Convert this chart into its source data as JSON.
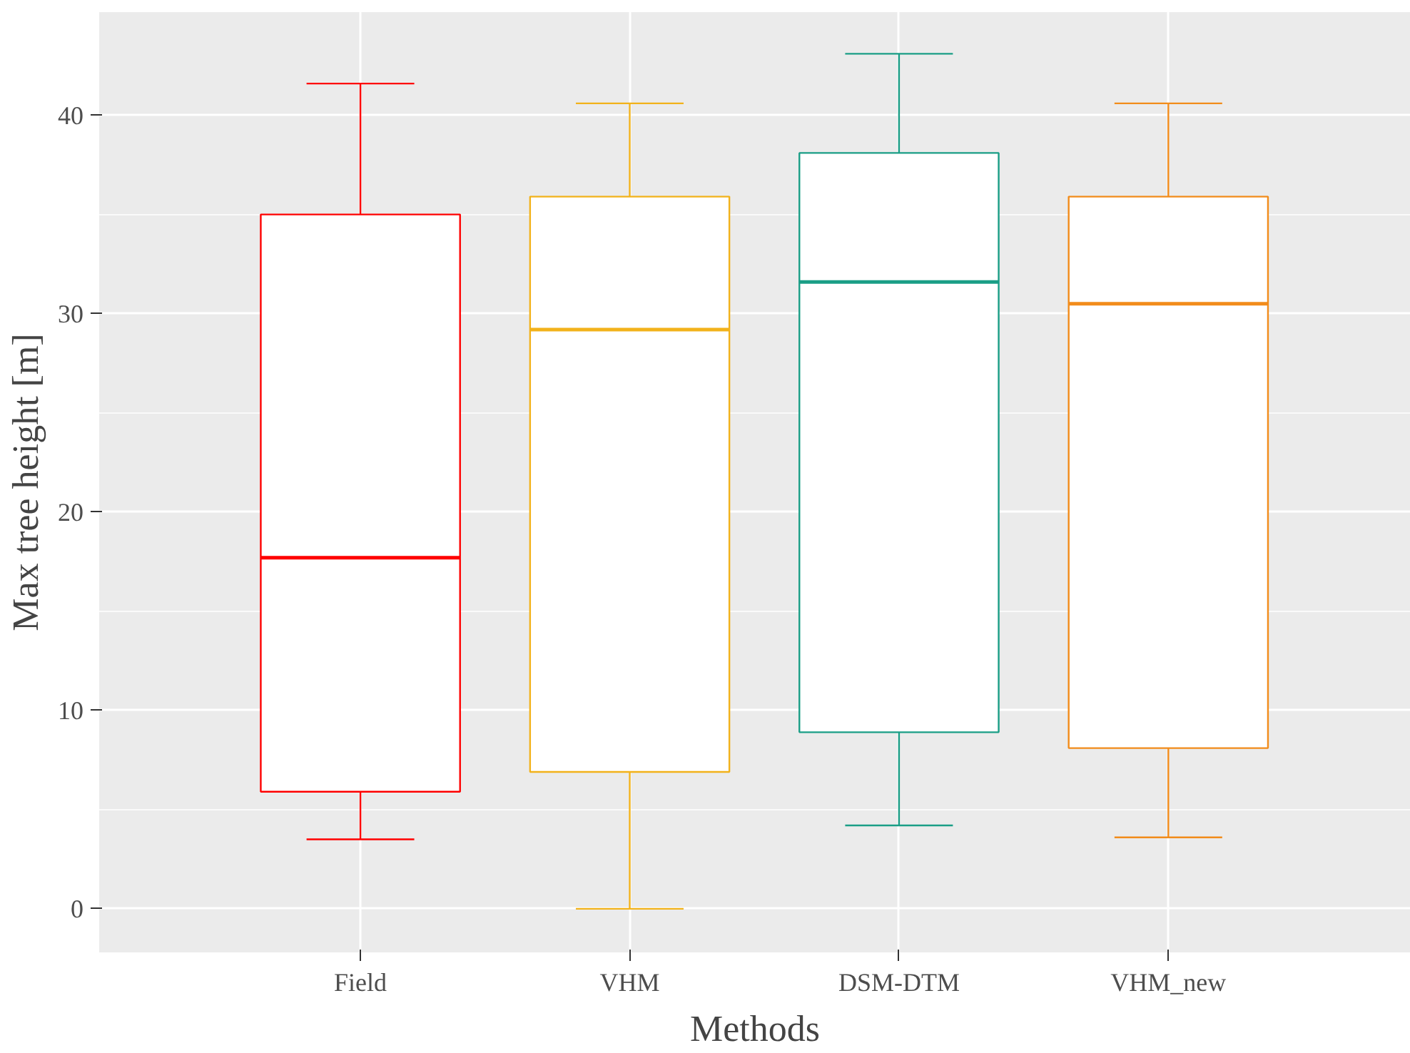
{
  "chart_data": {
    "type": "box",
    "xlabel": "Methods",
    "ylabel": "Max tree height [m]",
    "categories": [
      "Field",
      "VHM",
      "DSM-DTM",
      "VHM_new"
    ],
    "colors": [
      "#ff0000",
      "#f2b21b",
      "#1a9e86",
      "#f28c1b"
    ],
    "boxes": [
      {
        "low": 3.5,
        "q1": 5.9,
        "median": 17.7,
        "q3": 35.0,
        "high": 41.6
      },
      {
        "low": 0,
        "q1": 6.9,
        "median": 29.2,
        "q3": 35.9,
        "high": 40.6
      },
      {
        "low": 4.2,
        "q1": 8.9,
        "median": 31.6,
        "q3": 38.1,
        "high": 43.1
      },
      {
        "low": 3.6,
        "q1": 8.1,
        "median": 30.5,
        "q3": 35.9,
        "high": 40.6
      }
    ],
    "ylim": [
      -2.2,
      45.2
    ],
    "yticks": [
      0,
      10,
      20,
      30,
      40
    ],
    "grid": true
  }
}
